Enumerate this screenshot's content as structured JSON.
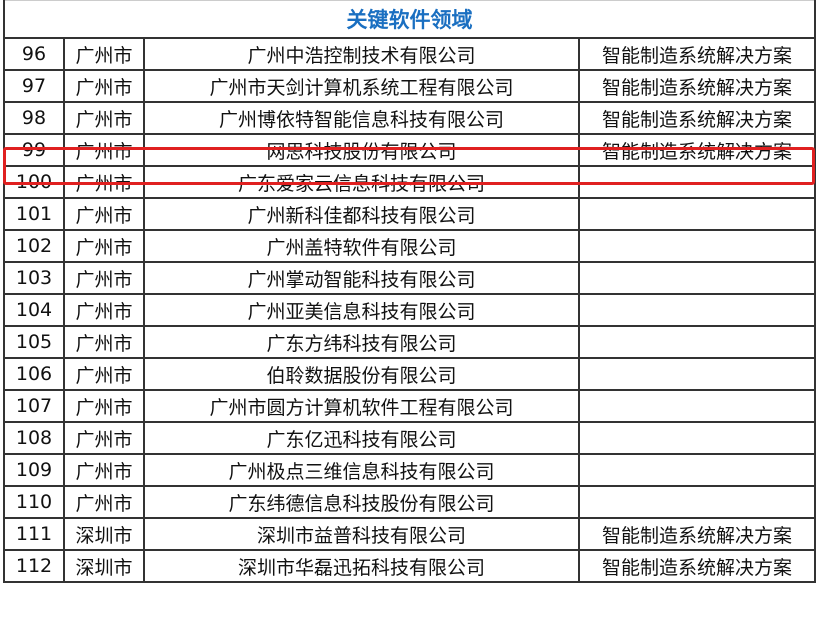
{
  "table": {
    "title": "关键软件领域",
    "rows": [
      {
        "no": "96",
        "city": "广州市",
        "company": "广州中浩控制技术有限公司",
        "field": "智能制造系统解决方案"
      },
      {
        "no": "97",
        "city": "广州市",
        "company": "广州市天剑计算机系统工程有限公司",
        "field": "智能制造系统解决方案"
      },
      {
        "no": "98",
        "city": "广州市",
        "company": "广州博依特智能信息科技有限公司",
        "field": "智能制造系统解决方案"
      },
      {
        "no": "99",
        "city": "广州市",
        "company": "网思科技股份有限公司",
        "field": "智能制造系统解决方案"
      },
      {
        "no": "100",
        "city": "广州市",
        "company": "广东爱家云信息科技有限公司",
        "field": ""
      },
      {
        "no": "101",
        "city": "广州市",
        "company": "广州新科佳都科技有限公司",
        "field": ""
      },
      {
        "no": "102",
        "city": "广州市",
        "company": "广州盖特软件有限公司",
        "field": ""
      },
      {
        "no": "103",
        "city": "广州市",
        "company": "广州掌动智能科技有限公司",
        "field": ""
      },
      {
        "no": "104",
        "city": "广州市",
        "company": "广州亚美信息科技有限公司",
        "field": ""
      },
      {
        "no": "105",
        "city": "广州市",
        "company": "广东方纬科技有限公司",
        "field": ""
      },
      {
        "no": "106",
        "city": "广州市",
        "company": "伯聆数据股份有限公司",
        "field": ""
      },
      {
        "no": "107",
        "city": "广州市",
        "company": "广州市圆方计算机软件工程有限公司",
        "field": ""
      },
      {
        "no": "108",
        "city": "广州市",
        "company": "广东亿迅科技有限公司",
        "field": ""
      },
      {
        "no": "109",
        "city": "广州市",
        "company": "广州极点三维信息科技有限公司",
        "field": ""
      },
      {
        "no": "110",
        "city": "广州市",
        "company": "广东纬德信息科技股份有限公司",
        "field": ""
      },
      {
        "no": "111",
        "city": "深圳市",
        "company": "深圳市益普科技有限公司",
        "field": "智能制造系统解决方案"
      },
      {
        "no": "112",
        "city": "深圳市",
        "company": "深圳市华磊迅拓科技有限公司",
        "field": "智能制造系统解决方案"
      }
    ],
    "highlighted_row": "99",
    "colors": {
      "title": "#1a6fc1",
      "highlight": "#e02020"
    }
  }
}
